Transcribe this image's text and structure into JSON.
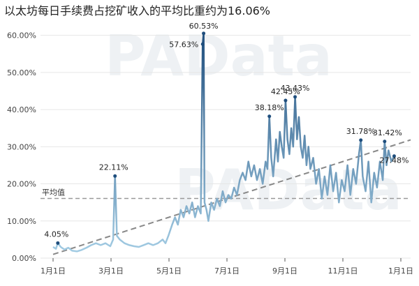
{
  "title": "以太坊每日手续费占挖矿收入的平均比重约为16.06%",
  "watermark": "PAData",
  "colors": {
    "line_low": "#a6cfe6",
    "line_high": "#1f4e7d",
    "avg_line": "#999999",
    "trend_line": "#888888",
    "grid": "#e6e6e6"
  },
  "chart_data": {
    "type": "line",
    "x_ticks": [
      "1月1日",
      "3月1日",
      "5月1日",
      "7月1日",
      "9月1日",
      "11月1日",
      "1月1日"
    ],
    "y_ticks": [
      "0.00%",
      "10.00%",
      "20.00%",
      "30.00%",
      "40.00%",
      "50.00%",
      "60.00%"
    ],
    "ylim": [
      0,
      62
    ],
    "x_range_days": [
      0,
      365
    ],
    "average": {
      "label": "平均值",
      "value": 16.06
    },
    "trend": [
      [
        0,
        1.0
      ],
      [
        365,
        31.0
      ]
    ],
    "series": [
      {
        "values": [
          [
            0,
            3.0
          ],
          [
            3,
            2.5
          ],
          [
            5,
            4.05
          ],
          [
            8,
            3.0
          ],
          [
            12,
            2.3
          ],
          [
            16,
            2.8
          ],
          [
            20,
            2.0
          ],
          [
            25,
            1.8
          ],
          [
            30,
            2.2
          ],
          [
            35,
            2.8
          ],
          [
            40,
            3.5
          ],
          [
            45,
            4.0
          ],
          [
            50,
            3.5
          ],
          [
            55,
            4.0
          ],
          [
            60,
            3.2
          ],
          [
            63,
            5.0
          ],
          [
            65,
            22.11
          ],
          [
            67,
            6.0
          ],
          [
            70,
            5.0
          ],
          [
            75,
            4.0
          ],
          [
            80,
            3.5
          ],
          [
            85,
            3.2
          ],
          [
            90,
            3.0
          ],
          [
            95,
            3.5
          ],
          [
            100,
            4.0
          ],
          [
            105,
            3.5
          ],
          [
            110,
            4.0
          ],
          [
            115,
            5.0
          ],
          [
            118,
            4.0
          ],
          [
            121,
            6.0
          ],
          [
            125,
            9.0
          ],
          [
            128,
            11.0
          ],
          [
            131,
            9.0
          ],
          [
            134,
            13.0
          ],
          [
            137,
            11.0
          ],
          [
            140,
            14.0
          ],
          [
            143,
            12.0
          ],
          [
            146,
            15.0
          ],
          [
            149,
            11.0
          ],
          [
            152,
            14.0
          ],
          [
            155,
            12.0
          ],
          [
            157,
            57.63
          ],
          [
            158,
            60.53
          ],
          [
            159,
            15.0
          ],
          [
            161,
            13.0
          ],
          [
            163,
            10.0
          ],
          [
            166,
            15.0
          ],
          [
            169,
            13.0
          ],
          [
            172,
            16.0
          ],
          [
            175,
            14.0
          ],
          [
            178,
            18.0
          ],
          [
            181,
            15.0
          ],
          [
            184,
            17.0
          ],
          [
            187,
            16.0
          ],
          [
            190,
            19.0
          ],
          [
            193,
            17.0
          ],
          [
            196,
            21.0
          ],
          [
            199,
            23.0
          ],
          [
            202,
            21.0
          ],
          [
            205,
            26.0
          ],
          [
            208,
            22.0
          ],
          [
            211,
            25.0
          ],
          [
            214,
            21.0
          ],
          [
            217,
            24.0
          ],
          [
            220,
            20.0
          ],
          [
            223,
            26.0
          ],
          [
            225,
            24.0
          ],
          [
            227,
            38.18
          ],
          [
            229,
            27.0
          ],
          [
            231,
            22.0
          ],
          [
            234,
            32.0
          ],
          [
            236,
            26.0
          ],
          [
            238,
            34.0
          ],
          [
            240,
            30.0
          ],
          [
            242,
            27.0
          ],
          [
            244,
            42.45
          ],
          [
            246,
            32.0
          ],
          [
            248,
            28.0
          ],
          [
            250,
            35.0
          ],
          [
            252,
            30.0
          ],
          [
            254,
            43.43
          ],
          [
            256,
            32.0
          ],
          [
            258,
            38.0
          ],
          [
            260,
            30.0
          ],
          [
            262,
            27.0
          ],
          [
            264,
            33.0
          ],
          [
            266,
            25.0
          ],
          [
            268,
            30.0
          ],
          [
            270,
            24.0
          ],
          [
            273,
            27.0
          ],
          [
            276,
            20.0
          ],
          [
            279,
            24.0
          ],
          [
            282,
            16.0
          ],
          [
            285,
            22.0
          ],
          [
            288,
            17.0
          ],
          [
            291,
            25.0
          ],
          [
            294,
            18.0
          ],
          [
            297,
            23.0
          ],
          [
            300,
            15.0
          ],
          [
            303,
            21.0
          ],
          [
            306,
            18.0
          ],
          [
            309,
            25.0
          ],
          [
            312,
            17.0
          ],
          [
            315,
            24.0
          ],
          [
            318,
            20.0
          ],
          [
            321,
            28.0
          ],
          [
            323,
            31.78
          ],
          [
            325,
            22.0
          ],
          [
            328,
            18.0
          ],
          [
            331,
            26.0
          ],
          [
            334,
            15.0
          ],
          [
            337,
            23.0
          ],
          [
            340,
            19.0
          ],
          [
            343,
            26.0
          ],
          [
            346,
            21.0
          ],
          [
            348,
            31.42
          ],
          [
            350,
            25.0
          ],
          [
            352,
            29.0
          ],
          [
            355,
            26.0
          ],
          [
            358,
            27.48
          ]
        ]
      }
    ],
    "data_labels": [
      {
        "text": "4.05%",
        "x": 5,
        "y": 4.05
      },
      {
        "text": "22.11%",
        "x": 65,
        "y": 22.11
      },
      {
        "text": "57.63%",
        "x": 157,
        "y": 57.63
      },
      {
        "text": "60.53%",
        "x": 158,
        "y": 60.53
      },
      {
        "text": "38.18%",
        "x": 227,
        "y": 38.18
      },
      {
        "text": "42.45%",
        "x": 244,
        "y": 42.45
      },
      {
        "text": "43.43%",
        "x": 254,
        "y": 43.43
      },
      {
        "text": "31.78%",
        "x": 323,
        "y": 31.78
      },
      {
        "text": "31.42%",
        "x": 348,
        "y": 31.42
      },
      {
        "text": "27.48%",
        "x": 358,
        "y": 27.48
      }
    ]
  }
}
